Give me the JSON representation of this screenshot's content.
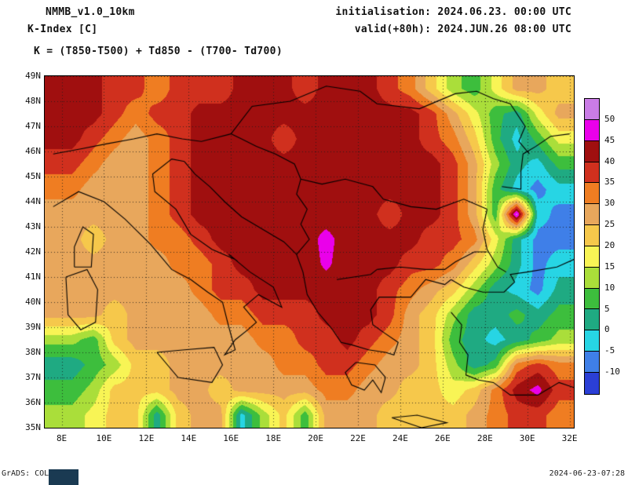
{
  "header": {
    "model": "NMMB_v1.0_10km",
    "variable": "K-Index [C]",
    "init_label": "initialisation: 2024.06.23. 00:00 UTC",
    "valid_label": "valid(+80h): 2024.JUN.26 08:00 UTC",
    "formula": "K = (T850-T500) + Td850 - (T700- Td700)"
  },
  "footer": {
    "credit": "GrADS: COLA/IGES",
    "timestamp": "2024-06-23-07:28"
  },
  "chart_data": {
    "type": "heatmap",
    "title": "K-Index [C]",
    "units": "C",
    "lon_range": [
      7.2,
      32.2
    ],
    "lat_range": [
      35,
      49
    ],
    "levels": [
      -10,
      -5,
      0,
      5,
      10,
      15,
      20,
      25,
      30,
      35,
      40,
      45,
      50
    ],
    "colors_ascending": [
      "#2b3fd6",
      "#3f7fe8",
      "#27d5e4",
      "#1faa82",
      "#3dbe3d",
      "#aade3a",
      "#f8f455",
      "#f6c84b",
      "#e8a75c",
      "#ef7d22",
      "#d0301e",
      "#a00f0f",
      "#ea00ea",
      "#ca7ce6"
    ],
    "colorbar_labels": [
      "50",
      "45",
      "40",
      "35",
      "30",
      "25",
      "20",
      "15",
      "10",
      "5",
      "0",
      "-5",
      "-10"
    ],
    "lon_ticks": [
      {
        "v": 8,
        "label": "8E"
      },
      {
        "v": 10,
        "label": "10E"
      },
      {
        "v": 12,
        "label": "12E"
      },
      {
        "v": 14,
        "label": "14E"
      },
      {
        "v": 16,
        "label": "16E"
      },
      {
        "v": 18,
        "label": "18E"
      },
      {
        "v": 20,
        "label": "20E"
      },
      {
        "v": 22,
        "label": "22E"
      },
      {
        "v": 24,
        "label": "24E"
      },
      {
        "v": 26,
        "label": "26E"
      },
      {
        "v": 28,
        "label": "28E"
      },
      {
        "v": 30,
        "label": "30E"
      },
      {
        "v": 32,
        "label": "32E"
      }
    ],
    "lat_ticks": [
      {
        "v": 49,
        "label": "49N"
      },
      {
        "v": 48,
        "label": "48N"
      },
      {
        "v": 47,
        "label": "47N"
      },
      {
        "v": 46,
        "label": "46N"
      },
      {
        "v": 45,
        "label": "45N"
      },
      {
        "v": 44,
        "label": "44N"
      },
      {
        "v": 43,
        "label": "43N"
      },
      {
        "v": 42,
        "label": "42N"
      },
      {
        "v": 41,
        "label": "41N"
      },
      {
        "v": 40,
        "label": "40N"
      },
      {
        "v": 39,
        "label": "39N"
      },
      {
        "v": 38,
        "label": "38N"
      },
      {
        "v": 37,
        "label": "37N"
      },
      {
        "v": 36,
        "label": "36N"
      },
      {
        "v": 35,
        "label": "35N"
      }
    ],
    "grid": {
      "lon_start": 8.5,
      "dlon": 1,
      "lat_start": 48.5,
      "dlat": 1,
      "values": [
        [
          42,
          42,
          37,
          37,
          32,
          37,
          37,
          37,
          42,
          42,
          42,
          37,
          42,
          42,
          42,
          37,
          32,
          22,
          12,
          7,
          17,
          27,
          27,
          22
        ],
        [
          42,
          42,
          37,
          32,
          37,
          37,
          42,
          42,
          42,
          42,
          42,
          42,
          42,
          42,
          42,
          42,
          42,
          37,
          27,
          17,
          7,
          2,
          17,
          27
        ],
        [
          42,
          37,
          32,
          27,
          32,
          37,
          42,
          42,
          42,
          42,
          37,
          42,
          42,
          42,
          42,
          42,
          42,
          37,
          32,
          22,
          7,
          -2,
          7,
          17
        ],
        [
          37,
          32,
          27,
          27,
          32,
          37,
          42,
          42,
          42,
          42,
          42,
          42,
          42,
          42,
          42,
          42,
          42,
          42,
          37,
          27,
          12,
          2,
          -2,
          7
        ],
        [
          32,
          27,
          27,
          27,
          32,
          37,
          42,
          42,
          42,
          42,
          42,
          42,
          42,
          42,
          42,
          42,
          42,
          42,
          37,
          27,
          7,
          -2,
          -7,
          -2
        ],
        [
          27,
          27,
          27,
          27,
          32,
          37,
          42,
          42,
          42,
          42,
          42,
          44,
          42,
          42,
          42,
          37,
          42,
          42,
          37,
          27,
          7,
          52,
          -2,
          -7
        ],
        [
          27,
          22,
          27,
          27,
          32,
          32,
          37,
          42,
          42,
          42,
          42,
          42,
          47,
          42,
          42,
          42,
          42,
          37,
          37,
          32,
          17,
          2,
          -7,
          -7
        ],
        [
          27,
          27,
          27,
          27,
          27,
          32,
          32,
          37,
          42,
          42,
          42,
          42,
          46,
          42,
          42,
          42,
          37,
          37,
          32,
          22,
          12,
          2,
          -7,
          -2
        ],
        [
          27,
          27,
          27,
          27,
          27,
          27,
          32,
          37,
          37,
          42,
          42,
          42,
          42,
          42,
          42,
          37,
          32,
          27,
          22,
          12,
          2,
          -2,
          -7,
          2
        ],
        [
          27,
          27,
          22,
          27,
          27,
          27,
          27,
          32,
          32,
          37,
          37,
          37,
          42,
          42,
          42,
          37,
          27,
          22,
          12,
          2,
          2,
          7,
          2,
          7
        ],
        [
          12,
          7,
          22,
          27,
          27,
          27,
          27,
          27,
          27,
          32,
          32,
          37,
          37,
          42,
          37,
          32,
          27,
          22,
          7,
          2,
          -2,
          2,
          7,
          12
        ],
        [
          2,
          7,
          12,
          22,
          22,
          27,
          27,
          27,
          27,
          27,
          32,
          32,
          37,
          37,
          32,
          27,
          27,
          22,
          12,
          2,
          7,
          32,
          37,
          32
        ],
        [
          7,
          12,
          22,
          22,
          22,
          27,
          27,
          22,
          27,
          27,
          27,
          27,
          32,
          32,
          27,
          27,
          22,
          22,
          17,
          22,
          32,
          42,
          47,
          37
        ],
        [
          12,
          17,
          22,
          22,
          2,
          22,
          27,
          27,
          -2,
          12,
          22,
          7,
          27,
          27,
          27,
          22,
          22,
          22,
          22,
          27,
          32,
          37,
          37,
          32
        ]
      ]
    },
    "coastlines": [
      [
        [
          7.6,
          43.8
        ],
        [
          8.8,
          44.4
        ],
        [
          10.0,
          44.0
        ],
        [
          11.0,
          43.3
        ],
        [
          12.2,
          42.3
        ],
        [
          13.2,
          41.3
        ],
        [
          14.1,
          40.9
        ],
        [
          14.9,
          40.4
        ],
        [
          15.6,
          40.0
        ],
        [
          15.9,
          39.0
        ],
        [
          16.2,
          38.1
        ],
        [
          15.7,
          37.9
        ],
        [
          16.2,
          38.5
        ],
        [
          16.8,
          38.9
        ],
        [
          17.2,
          39.2
        ],
        [
          16.6,
          39.8
        ],
        [
          17.3,
          40.3
        ],
        [
          18.4,
          39.8
        ],
        [
          18.0,
          40.6
        ],
        [
          16.9,
          41.2
        ],
        [
          15.9,
          41.9
        ],
        [
          16.2,
          41.7
        ],
        [
          15.1,
          42.1
        ],
        [
          14.1,
          42.7
        ],
        [
          13.4,
          43.7
        ],
        [
          12.4,
          44.4
        ],
        [
          12.3,
          45.1
        ],
        [
          13.2,
          45.7
        ],
        [
          13.8,
          45.6
        ]
      ],
      [
        [
          13.8,
          45.6
        ],
        [
          14.3,
          45.1
        ],
        [
          15.0,
          44.6
        ],
        [
          15.7,
          44.0
        ],
        [
          16.5,
          43.4
        ],
        [
          17.5,
          42.9
        ],
        [
          18.5,
          42.4
        ],
        [
          19.1,
          41.9
        ],
        [
          19.4,
          41.2
        ],
        [
          19.6,
          40.3
        ],
        [
          20.1,
          39.6
        ],
        [
          20.8,
          38.9
        ],
        [
          21.2,
          38.4
        ],
        [
          21.7,
          38.3
        ],
        [
          22.5,
          38.1
        ],
        [
          23.3,
          38.0
        ],
        [
          23.7,
          37.9
        ],
        [
          23.9,
          38.4
        ],
        [
          23.2,
          38.8
        ],
        [
          22.7,
          39.1
        ],
        [
          22.6,
          39.7
        ],
        [
          23.0,
          40.2
        ],
        [
          23.8,
          40.2
        ],
        [
          24.5,
          40.2
        ],
        [
          25.2,
          40.9
        ],
        [
          26.1,
          40.7
        ],
        [
          26.4,
          40.9
        ]
      ],
      [
        [
          21.9,
          37.6
        ],
        [
          21.4,
          37.2
        ],
        [
          21.7,
          36.7
        ],
        [
          22.3,
          36.5
        ],
        [
          22.7,
          36.9
        ],
        [
          23.1,
          36.4
        ],
        [
          23.3,
          37.0
        ],
        [
          22.8,
          37.5
        ],
        [
          21.9,
          37.6
        ]
      ],
      [
        [
          23.6,
          35.4
        ],
        [
          24.8,
          35.5
        ],
        [
          26.2,
          35.2
        ],
        [
          25.0,
          35.0
        ],
        [
          23.6,
          35.4
        ]
      ],
      [
        [
          12.5,
          38.0
        ],
        [
          13.8,
          38.1
        ],
        [
          15.2,
          38.2
        ],
        [
          15.6,
          37.5
        ],
        [
          15.1,
          36.8
        ],
        [
          13.5,
          37.0
        ],
        [
          12.5,
          38.0
        ]
      ],
      [
        [
          8.2,
          41.0
        ],
        [
          9.2,
          41.3
        ],
        [
          9.7,
          40.5
        ],
        [
          9.6,
          39.2
        ],
        [
          8.9,
          38.9
        ],
        [
          8.3,
          39.5
        ],
        [
          8.2,
          41.0
        ]
      ],
      [
        [
          8.6,
          41.4
        ],
        [
          9.4,
          41.4
        ],
        [
          9.5,
          42.7
        ],
        [
          9.0,
          43.0
        ],
        [
          8.6,
          42.2
        ],
        [
          8.6,
          41.4
        ]
      ],
      [
        [
          26.4,
          39.6
        ],
        [
          26.9,
          39.1
        ],
        [
          26.8,
          38.4
        ],
        [
          27.2,
          37.9
        ],
        [
          27.1,
          37.1
        ],
        [
          27.7,
          36.9
        ],
        [
          28.4,
          36.8
        ],
        [
          29.2,
          36.3
        ],
        [
          30.5,
          36.3
        ],
        [
          31.5,
          36.8
        ],
        [
          32.2,
          36.6
        ]
      ],
      [
        [
          26.4,
          40.9
        ],
        [
          27.0,
          40.6
        ],
        [
          27.9,
          40.4
        ],
        [
          28.9,
          40.4
        ],
        [
          29.4,
          40.8
        ],
        [
          29.2,
          41.1
        ],
        [
          30.0,
          41.2
        ],
        [
          31.4,
          41.4
        ],
        [
          32.2,
          41.7
        ]
      ],
      [
        [
          28.1,
          43.7
        ],
        [
          27.9,
          42.9
        ],
        [
          28.1,
          42.1
        ],
        [
          28.6,
          41.4
        ],
        [
          29.0,
          41.2
        ]
      ],
      [
        [
          28.8,
          44.6
        ],
        [
          29.7,
          44.5
        ],
        [
          29.7,
          45.2
        ],
        [
          29.8,
          45.9
        ],
        [
          30.4,
          46.2
        ],
        [
          31.1,
          46.6
        ],
        [
          32.0,
          46.7
        ]
      ]
    ],
    "borders": [
      [
        [
          7.6,
          45.9
        ],
        [
          8.9,
          46.1
        ],
        [
          10.1,
          46.3
        ],
        [
          11.4,
          46.5
        ],
        [
          12.5,
          46.7
        ],
        [
          13.7,
          46.5
        ],
        [
          14.6,
          46.4
        ],
        [
          16.0,
          46.7
        ]
      ],
      [
        [
          16.0,
          46.7
        ],
        [
          16.5,
          46.5
        ],
        [
          17.2,
          46.2
        ],
        [
          18.1,
          45.9
        ],
        [
          19.0,
          45.5
        ],
        [
          19.3,
          44.9
        ],
        [
          20.3,
          44.7
        ],
        [
          21.4,
          44.9
        ],
        [
          22.7,
          44.6
        ],
        [
          23.2,
          44.1
        ],
        [
          24.5,
          43.8
        ],
        [
          25.7,
          43.7
        ],
        [
          27.0,
          44.1
        ],
        [
          28.1,
          43.7
        ]
      ],
      [
        [
          16.0,
          46.7
        ],
        [
          17.0,
          47.8
        ],
        [
          18.8,
          48.0
        ],
        [
          20.5,
          48.6
        ],
        [
          22.1,
          48.4
        ],
        [
          22.9,
          47.9
        ],
        [
          24.9,
          47.7
        ],
        [
          26.6,
          48.3
        ],
        [
          27.6,
          48.4
        ],
        [
          28.4,
          48.1
        ],
        [
          29.2,
          47.9
        ],
        [
          29.9,
          47.0
        ],
        [
          29.6,
          46.4
        ],
        [
          30.1,
          45.9
        ]
      ],
      [
        [
          22.9,
          41.3
        ],
        [
          24.0,
          41.4
        ],
        [
          25.2,
          41.3
        ],
        [
          26.1,
          41.3
        ],
        [
          26.6,
          41.6
        ],
        [
          27.5,
          42.0
        ],
        [
          28.1,
          42.0
        ]
      ],
      [
        [
          19.1,
          41.9
        ],
        [
          19.7,
          42.5
        ],
        [
          19.3,
          43.1
        ],
        [
          19.6,
          43.7
        ],
        [
          19.1,
          44.3
        ],
        [
          19.3,
          44.9
        ]
      ],
      [
        [
          21.0,
          40.9
        ],
        [
          21.8,
          41.0
        ],
        [
          22.6,
          41.1
        ],
        [
          22.9,
          41.3
        ]
      ]
    ]
  }
}
